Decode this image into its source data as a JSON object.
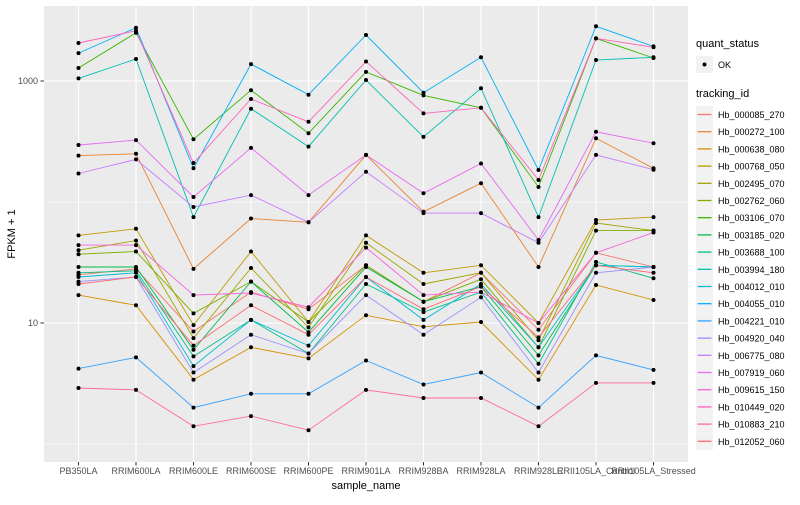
{
  "chart_data": {
    "type": "line",
    "title": "",
    "xlabel": "sample_name",
    "ylabel": "FPKM + 1",
    "y_scale": "log10",
    "ylim": [
      0.7,
      4200
    ],
    "grid": true,
    "panel_bg": "#EBEBEB",
    "grid_color": "#FFFFFF",
    "axis_text_color": "#4D4D4D",
    "point_color": "#000000",
    "legend_key_bg": "#F2F2F2",
    "y_major_ticks": [
      {
        "label": "1000",
        "value": 1000
      },
      {
        "label": "10",
        "value": 10
      }
    ],
    "y_minor_values": [
      100,
      1
    ],
    "categories": [
      "PB350LA",
      "RRIM600LA",
      "RRIM600LE",
      "RRIM600SE",
      "RRIM600PE",
      "RRIM901LA",
      "RRIM928BA",
      "RRIM928LA",
      "RRIM928LE",
      "RRII105LA_Control",
      "RRII105LA_Stressed"
    ],
    "legends": {
      "quant_status": {
        "title": "quant_status",
        "items": [
          {
            "label": "OK",
            "marker": "black-point"
          }
        ]
      },
      "tracking_id": {
        "title": "tracking_id"
      }
    },
    "series": [
      {
        "name": "Hb_000085_270",
        "color": "#F8766D",
        "values": [
          25,
          28,
          8.5,
          18,
          13,
          30,
          15,
          26,
          8.8,
          38,
          29
        ]
      },
      {
        "name": "Hb_000272_100",
        "color": "#EA8331",
        "values": [
          242,
          250,
          28,
          73,
          68,
          245,
          83,
          143,
          29,
          337,
          190
        ]
      },
      {
        "name": "Hb_000638_080",
        "color": "#D89000",
        "values": [
          17,
          14,
          3.4,
          6.3,
          5.1,
          11.6,
          9.3,
          10.2,
          3.4,
          20.6,
          15.5
        ]
      },
      {
        "name": "Hb_000768_050",
        "color": "#C09B00",
        "values": [
          53,
          60,
          9.6,
          39,
          10.2,
          53,
          26,
          30,
          10,
          71,
          75
        ]
      },
      {
        "name": "Hb_002495_070",
        "color": "#A3A500",
        "values": [
          40,
          48,
          7.5,
          28.5,
          9.2,
          46,
          21,
          26,
          7.2,
          67,
          58
        ]
      },
      {
        "name": "Hb_002762_060",
        "color": "#7CAE00",
        "values": [
          37,
          39,
          12,
          22,
          10.2,
          30,
          15,
          23,
          6.3,
          58,
          58
        ]
      },
      {
        "name": "Hb_003106_070",
        "color": "#39B600",
        "values": [
          1280,
          2500,
          330,
          840,
          370,
          1190,
          760,
          600,
          133,
          2250,
          1550
        ]
      },
      {
        "name": "Hb_003185_020",
        "color": "#00BB4E",
        "values": [
          29,
          29,
          6,
          22,
          8.4,
          29,
          15,
          20,
          5.4,
          30,
          29
        ]
      },
      {
        "name": "Hb_003688_100",
        "color": "#00C087",
        "values": [
          26,
          27,
          5.3,
          10.6,
          5.6,
          21,
          12.3,
          18,
          4.6,
          32,
          23.4
        ]
      },
      {
        "name": "Hb_003994_180",
        "color": "#00C0AF",
        "values": [
          1050,
          1520,
          75,
          590,
          287,
          1020,
          345,
          870,
          75,
          1490,
          1570
        ]
      },
      {
        "name": "Hb_004012_010",
        "color": "#00BCD8",
        "values": [
          24,
          26,
          4.4,
          10.6,
          6.5,
          24,
          10.6,
          21,
          6.3,
          30,
          29
        ]
      },
      {
        "name": "Hb_004055_010",
        "color": "#00B0F6",
        "values": [
          1700,
          2750,
          190,
          1380,
          770,
          2400,
          800,
          1570,
          184,
          2830,
          1930
        ]
      },
      {
        "name": "Hb_004221_010",
        "color": "#35A2FF",
        "values": [
          4.2,
          5.2,
          2.0,
          2.6,
          2.6,
          4.9,
          3.1,
          3.9,
          2.0,
          5.4,
          4.1
        ]
      },
      {
        "name": "Hb_004920_040",
        "color": "#9590FF",
        "values": [
          22,
          24,
          3.9,
          8,
          5.6,
          17,
          8,
          16.3,
          3.9,
          26,
          29
        ]
      },
      {
        "name": "Hb_006775_080",
        "color": "#C77CFF",
        "values": [
          172,
          225,
          91,
          114,
          68,
          178,
          81,
          81,
          46,
          245,
          185
        ]
      },
      {
        "name": "Hb_007919_060",
        "color": "#E76BF3",
        "values": [
          296,
          325,
          110,
          280,
          114,
          245,
          118,
          208,
          48.5,
          380,
          306
        ]
      },
      {
        "name": "Hb_009615_150",
        "color": "#FA62DB",
        "values": [
          44,
          44,
          17,
          17.7,
          13.5,
          42,
          17,
          18,
          10,
          38,
          56
        ]
      },
      {
        "name": "Hb_010449_020",
        "color": "#FF62BC",
        "values": [
          2060,
          2600,
          210,
          710,
          460,
          1450,
          540,
          600,
          152,
          2250,
          1900
        ]
      },
      {
        "name": "Hb_010883_210",
        "color": "#FF6A98",
        "values": [
          2.9,
          2.8,
          1.4,
          1.7,
          1.3,
          2.8,
          2.4,
          2.4,
          1.4,
          3.2,
          3.2
        ]
      },
      {
        "name": "Hb_012052_060",
        "color": "#FF6B75",
        "values": [
          21,
          24,
          6.5,
          14,
          8,
          24,
          13,
          20,
          7.6,
          30,
          26
        ]
      }
    ]
  }
}
